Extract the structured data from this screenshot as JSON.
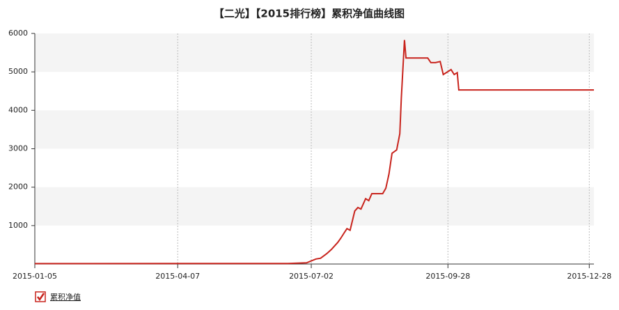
{
  "chart_data": {
    "type": "line",
    "title": "【二光】【2015排行榜】累积净值曲线图",
    "x": [
      "2015-01-05",
      "2015-06-17",
      "2015-06-29",
      "2015-07-05",
      "2015-07-08",
      "2015-07-12",
      "2015-07-15",
      "2015-07-19",
      "2015-07-21",
      "2015-07-23",
      "2015-07-25",
      "2015-07-27",
      "2015-07-30",
      "2015-08-01",
      "2015-08-03",
      "2015-08-06",
      "2015-08-08",
      "2015-08-10",
      "2015-08-17",
      "2015-08-19",
      "2015-08-21",
      "2015-08-23",
      "2015-08-26",
      "2015-08-28",
      "2015-08-29",
      "2015-08-31",
      "2015-09-01",
      "2015-09-15",
      "2015-09-17",
      "2015-09-20",
      "2015-09-23",
      "2015-09-25",
      "2015-09-30",
      "2015-10-02",
      "2015-10-04",
      "2015-10-05",
      "2015-12-31"
    ],
    "series": [
      {
        "name": "累积净值",
        "color": "#c8231c",
        "values": [
          10,
          15,
          30,
          130,
          150,
          270,
          380,
          560,
          670,
          800,
          920,
          880,
          1380,
          1470,
          1430,
          1700,
          1650,
          1830,
          1830,
          1970,
          2340,
          2880,
          2970,
          3390,
          4330,
          5830,
          5360,
          5360,
          5240,
          5240,
          5270,
          4930,
          5060,
          4930,
          4980,
          4530,
          4530
        ]
      }
    ],
    "xlim": [
      "2015-01-05",
      "2015-12-31"
    ],
    "xticks": [
      "2015-01-05",
      "2015-04-07",
      "2015-07-02",
      "2015-09-28",
      "2015-12-28"
    ],
    "ylim": [
      0,
      6000
    ],
    "yticks": [
      1000,
      2000,
      3000,
      4000,
      5000,
      6000
    ],
    "grid": true,
    "legend": "bottom-left"
  }
}
